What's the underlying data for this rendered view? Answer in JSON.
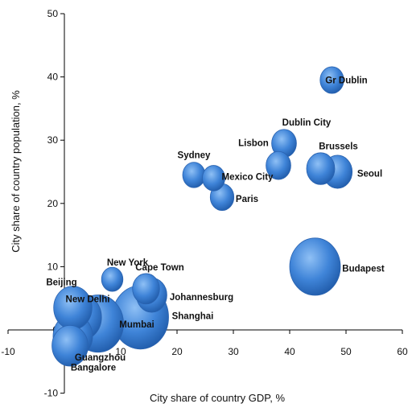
{
  "chart_data": {
    "type": "scatter",
    "xlabel": "City share of country GDP, %",
    "ylabel": "City share of country population, %",
    "xlim": [
      -10,
      60
    ],
    "ylim": [
      -10,
      50
    ],
    "x_ticks": [
      -10,
      0,
      10,
      20,
      30,
      40,
      50,
      60
    ],
    "y_ticks": [
      -10,
      0,
      10,
      20,
      30,
      40,
      50
    ],
    "grid": false,
    "bubble_color": "#3a7fd5",
    "points": [
      {
        "label": "Gr Dublin",
        "x": 47.5,
        "y": 39.5,
        "size": 2.1,
        "label_dx": 18,
        "label_dy": 0
      },
      {
        "label": "Dublin City",
        "x": 39.0,
        "y": 29.5,
        "size": 2.2,
        "label_dx": 28,
        "label_dy": -26
      },
      {
        "label": "Lisbon",
        "x": 38.0,
        "y": 26.0,
        "size": 2.2,
        "label_dx": -31,
        "label_dy": -28
      },
      {
        "label": "Brussels",
        "x": 45.5,
        "y": 25.5,
        "size": 2.5,
        "label_dx": 22,
        "label_dy": -28
      },
      {
        "label": "Seoul",
        "x": 48.5,
        "y": 25.0,
        "size": 2.6,
        "label_dx": 40,
        "label_dy": 2
      },
      {
        "label": "Sydney",
        "x": 23.0,
        "y": 24.5,
        "size": 2.0,
        "label_dx": 0,
        "label_dy": -25
      },
      {
        "label": "Mexico City",
        "x": 26.5,
        "y": 24.0,
        "size": 2.0,
        "label_dx": 42,
        "label_dy": -2
      },
      {
        "label": "Paris",
        "x": 28.0,
        "y": 21.0,
        "size": 2.1,
        "label_dx": 31,
        "label_dy": 2
      },
      {
        "label": "Budapest",
        "x": 44.5,
        "y": 10.0,
        "size": 4.5,
        "label_dx": 60,
        "label_dy": 2
      },
      {
        "label": "New York",
        "x": 8.5,
        "y": 8.0,
        "size": 1.9,
        "label_dx": 19,
        "label_dy": -21
      },
      {
        "label": "Cape Town",
        "x": 14.5,
        "y": 6.5,
        "size": 2.4,
        "label_dx": 17,
        "label_dy": -27
      },
      {
        "label": "Johannesburg",
        "x": 15.5,
        "y": 5.5,
        "size": 2.7,
        "label_dx": 62,
        "label_dy": 2
      },
      {
        "label": "Shanghai",
        "x": 13.5,
        "y": 2.0,
        "size": 5.0,
        "label_dx": 65,
        "label_dy": -2
      },
      {
        "label": "Beijing",
        "x": 1.5,
        "y": 3.5,
        "size": 3.4,
        "label_dx": -14,
        "label_dy": -32
      },
      {
        "label": "New Delhi",
        "x": 3.0,
        "y": 2.0,
        "size": 3.6,
        "label_dx": 8,
        "label_dy": -23
      },
      {
        "label": "Mumbai",
        "x": 6.0,
        "y": 1.0,
        "size": 4.5,
        "label_dx": 48,
        "label_dy": 1
      },
      {
        "label": "Guangzhou",
        "x": 1.5,
        "y": -1.0,
        "size": 3.5,
        "label_dx": 34,
        "label_dy": 26
      },
      {
        "label": "Bangalore",
        "x": 1.0,
        "y": -2.5,
        "size": 3.2,
        "label_dx": 29,
        "label_dy": 27
      }
    ]
  }
}
